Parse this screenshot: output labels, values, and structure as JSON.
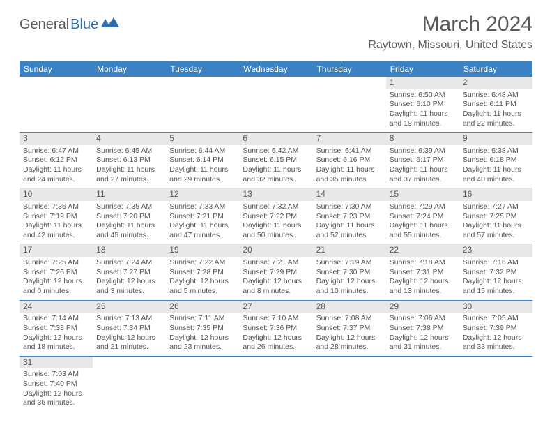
{
  "logo": {
    "part1": "General",
    "part2": "Blue"
  },
  "title": "March 2024",
  "location": "Raytown, Missouri, United States",
  "colors": {
    "header_bg": "#3b82c4",
    "header_fg": "#ffffff",
    "daynum_bg": "#e8e8e8",
    "border": "#3b82c4",
    "text": "#555555",
    "logo_accent": "#2f6fb0"
  },
  "weekdays": [
    "Sunday",
    "Monday",
    "Tuesday",
    "Wednesday",
    "Thursday",
    "Friday",
    "Saturday"
  ],
  "days": {
    "1": {
      "sunrise": "6:50 AM",
      "sunset": "6:10 PM",
      "daylight": "11 hours and 19 minutes."
    },
    "2": {
      "sunrise": "6:48 AM",
      "sunset": "6:11 PM",
      "daylight": "11 hours and 22 minutes."
    },
    "3": {
      "sunrise": "6:47 AM",
      "sunset": "6:12 PM",
      "daylight": "11 hours and 24 minutes."
    },
    "4": {
      "sunrise": "6:45 AM",
      "sunset": "6:13 PM",
      "daylight": "11 hours and 27 minutes."
    },
    "5": {
      "sunrise": "6:44 AM",
      "sunset": "6:14 PM",
      "daylight": "11 hours and 29 minutes."
    },
    "6": {
      "sunrise": "6:42 AM",
      "sunset": "6:15 PM",
      "daylight": "11 hours and 32 minutes."
    },
    "7": {
      "sunrise": "6:41 AM",
      "sunset": "6:16 PM",
      "daylight": "11 hours and 35 minutes."
    },
    "8": {
      "sunrise": "6:39 AM",
      "sunset": "6:17 PM",
      "daylight": "11 hours and 37 minutes."
    },
    "9": {
      "sunrise": "6:38 AM",
      "sunset": "6:18 PM",
      "daylight": "11 hours and 40 minutes."
    },
    "10": {
      "sunrise": "7:36 AM",
      "sunset": "7:19 PM",
      "daylight": "11 hours and 42 minutes."
    },
    "11": {
      "sunrise": "7:35 AM",
      "sunset": "7:20 PM",
      "daylight": "11 hours and 45 minutes."
    },
    "12": {
      "sunrise": "7:33 AM",
      "sunset": "7:21 PM",
      "daylight": "11 hours and 47 minutes."
    },
    "13": {
      "sunrise": "7:32 AM",
      "sunset": "7:22 PM",
      "daylight": "11 hours and 50 minutes."
    },
    "14": {
      "sunrise": "7:30 AM",
      "sunset": "7:23 PM",
      "daylight": "11 hours and 52 minutes."
    },
    "15": {
      "sunrise": "7:29 AM",
      "sunset": "7:24 PM",
      "daylight": "11 hours and 55 minutes."
    },
    "16": {
      "sunrise": "7:27 AM",
      "sunset": "7:25 PM",
      "daylight": "11 hours and 57 minutes."
    },
    "17": {
      "sunrise": "7:25 AM",
      "sunset": "7:26 PM",
      "daylight": "12 hours and 0 minutes."
    },
    "18": {
      "sunrise": "7:24 AM",
      "sunset": "7:27 PM",
      "daylight": "12 hours and 3 minutes."
    },
    "19": {
      "sunrise": "7:22 AM",
      "sunset": "7:28 PM",
      "daylight": "12 hours and 5 minutes."
    },
    "20": {
      "sunrise": "7:21 AM",
      "sunset": "7:29 PM",
      "daylight": "12 hours and 8 minutes."
    },
    "21": {
      "sunrise": "7:19 AM",
      "sunset": "7:30 PM",
      "daylight": "12 hours and 10 minutes."
    },
    "22": {
      "sunrise": "7:18 AM",
      "sunset": "7:31 PM",
      "daylight": "12 hours and 13 minutes."
    },
    "23": {
      "sunrise": "7:16 AM",
      "sunset": "7:32 PM",
      "daylight": "12 hours and 15 minutes."
    },
    "24": {
      "sunrise": "7:14 AM",
      "sunset": "7:33 PM",
      "daylight": "12 hours and 18 minutes."
    },
    "25": {
      "sunrise": "7:13 AM",
      "sunset": "7:34 PM",
      "daylight": "12 hours and 21 minutes."
    },
    "26": {
      "sunrise": "7:11 AM",
      "sunset": "7:35 PM",
      "daylight": "12 hours and 23 minutes."
    },
    "27": {
      "sunrise": "7:10 AM",
      "sunset": "7:36 PM",
      "daylight": "12 hours and 26 minutes."
    },
    "28": {
      "sunrise": "7:08 AM",
      "sunset": "7:37 PM",
      "daylight": "12 hours and 28 minutes."
    },
    "29": {
      "sunrise": "7:06 AM",
      "sunset": "7:38 PM",
      "daylight": "12 hours and 31 minutes."
    },
    "30": {
      "sunrise": "7:05 AM",
      "sunset": "7:39 PM",
      "daylight": "12 hours and 33 minutes."
    },
    "31": {
      "sunrise": "7:03 AM",
      "sunset": "7:40 PM",
      "daylight": "12 hours and 36 minutes."
    }
  },
  "grid": [
    [
      null,
      null,
      null,
      null,
      null,
      "1",
      "2"
    ],
    [
      "3",
      "4",
      "5",
      "6",
      "7",
      "8",
      "9"
    ],
    [
      "10",
      "11",
      "12",
      "13",
      "14",
      "15",
      "16"
    ],
    [
      "17",
      "18",
      "19",
      "20",
      "21",
      "22",
      "23"
    ],
    [
      "24",
      "25",
      "26",
      "27",
      "28",
      "29",
      "30"
    ],
    [
      "31",
      null,
      null,
      null,
      null,
      null,
      null
    ]
  ],
  "labels": {
    "sunrise": "Sunrise: ",
    "sunset": "Sunset: ",
    "daylight": "Daylight: "
  }
}
